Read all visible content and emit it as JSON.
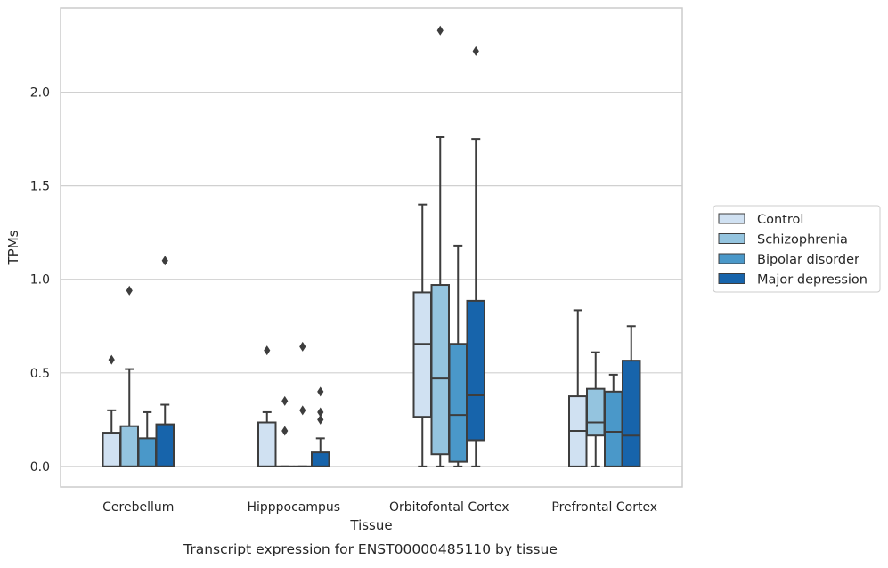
{
  "chart_data": {
    "type": "box",
    "xlabel": "Tissue",
    "ylabel": "TPMs",
    "caption": "Transcript expression for ENST00000485110 by tissue",
    "ylim": [
      -0.11,
      2.45
    ],
    "yticks": [
      "0.0",
      "0.5",
      "1.0",
      "1.5",
      "2.0"
    ],
    "ytick_values": [
      0,
      0.5,
      1.0,
      1.5,
      2.0
    ],
    "grid": "horizontal",
    "legend_position": "right",
    "categories": [
      "Cerebellum",
      "Hipppocampus",
      "Orbitofontal Cortex",
      "Prefrontal Cortex"
    ],
    "series": [
      {
        "name": "Control",
        "color": "#d0e1f2",
        "boxes": [
          {
            "q1": 0,
            "median": 0,
            "q3": 0.18,
            "whisker_low": 0,
            "whisker_high": 0.3,
            "outliers": [
              0.57
            ]
          },
          {
            "q1": 0,
            "median": 0,
            "q3": 0.235,
            "whisker_low": 0,
            "whisker_high": 0.29,
            "outliers": [
              0.62
            ]
          },
          {
            "q1": 0.265,
            "median": 0.655,
            "q3": 0.93,
            "whisker_low": 0,
            "whisker_high": 1.4,
            "outliers": []
          },
          {
            "q1": 0,
            "median": 0.19,
            "q3": 0.375,
            "whisker_low": 0,
            "whisker_high": 0.835,
            "outliers": []
          }
        ]
      },
      {
        "name": "Schizophrenia",
        "color": "#94c4df",
        "boxes": [
          {
            "q1": 0,
            "median": 0,
            "q3": 0.215,
            "whisker_low": 0,
            "whisker_high": 0.52,
            "outliers": [
              0.94
            ]
          },
          {
            "q1": 0,
            "median": 0,
            "q3": 0,
            "whisker_low": 0,
            "whisker_high": 0,
            "outliers": [
              0.19,
              0.35
            ]
          },
          {
            "q1": 0.065,
            "median": 0.47,
            "q3": 0.97,
            "whisker_low": 0,
            "whisker_high": 1.76,
            "outliers": [
              2.33
            ]
          },
          {
            "q1": 0.165,
            "median": 0.235,
            "q3": 0.415,
            "whisker_low": 0,
            "whisker_high": 0.61,
            "outliers": []
          }
        ]
      },
      {
        "name": "Bipolar disorder",
        "color": "#4a98c9",
        "boxes": [
          {
            "q1": 0,
            "median": 0,
            "q3": 0.15,
            "whisker_low": 0,
            "whisker_high": 0.29,
            "outliers": []
          },
          {
            "q1": 0,
            "median": 0,
            "q3": 0,
            "whisker_low": 0,
            "whisker_high": 0,
            "outliers": [
              0.3,
              0.64
            ]
          },
          {
            "q1": 0.025,
            "median": 0.275,
            "q3": 0.655,
            "whisker_low": 0,
            "whisker_high": 1.18,
            "outliers": []
          },
          {
            "q1": 0,
            "median": 0.185,
            "q3": 0.4,
            "whisker_low": 0,
            "whisker_high": 0.49,
            "outliers": []
          }
        ]
      },
      {
        "name": "Major depression",
        "color": "#1764ab",
        "boxes": [
          {
            "q1": 0,
            "median": 0,
            "q3": 0.225,
            "whisker_low": 0,
            "whisker_high": 0.33,
            "outliers": [
              1.1
            ]
          },
          {
            "q1": 0,
            "median": 0,
            "q3": 0.075,
            "whisker_low": 0,
            "whisker_high": 0.15,
            "outliers": [
              0.25,
              0.29,
              0.4
            ]
          },
          {
            "q1": 0.14,
            "median": 0.38,
            "q3": 0.885,
            "whisker_low": 0,
            "whisker_high": 1.75,
            "outliers": [
              2.22
            ]
          },
          {
            "q1": 0,
            "median": 0.165,
            "q3": 0.565,
            "whisker_low": 0,
            "whisker_high": 0.75,
            "outliers": []
          }
        ]
      }
    ]
  }
}
